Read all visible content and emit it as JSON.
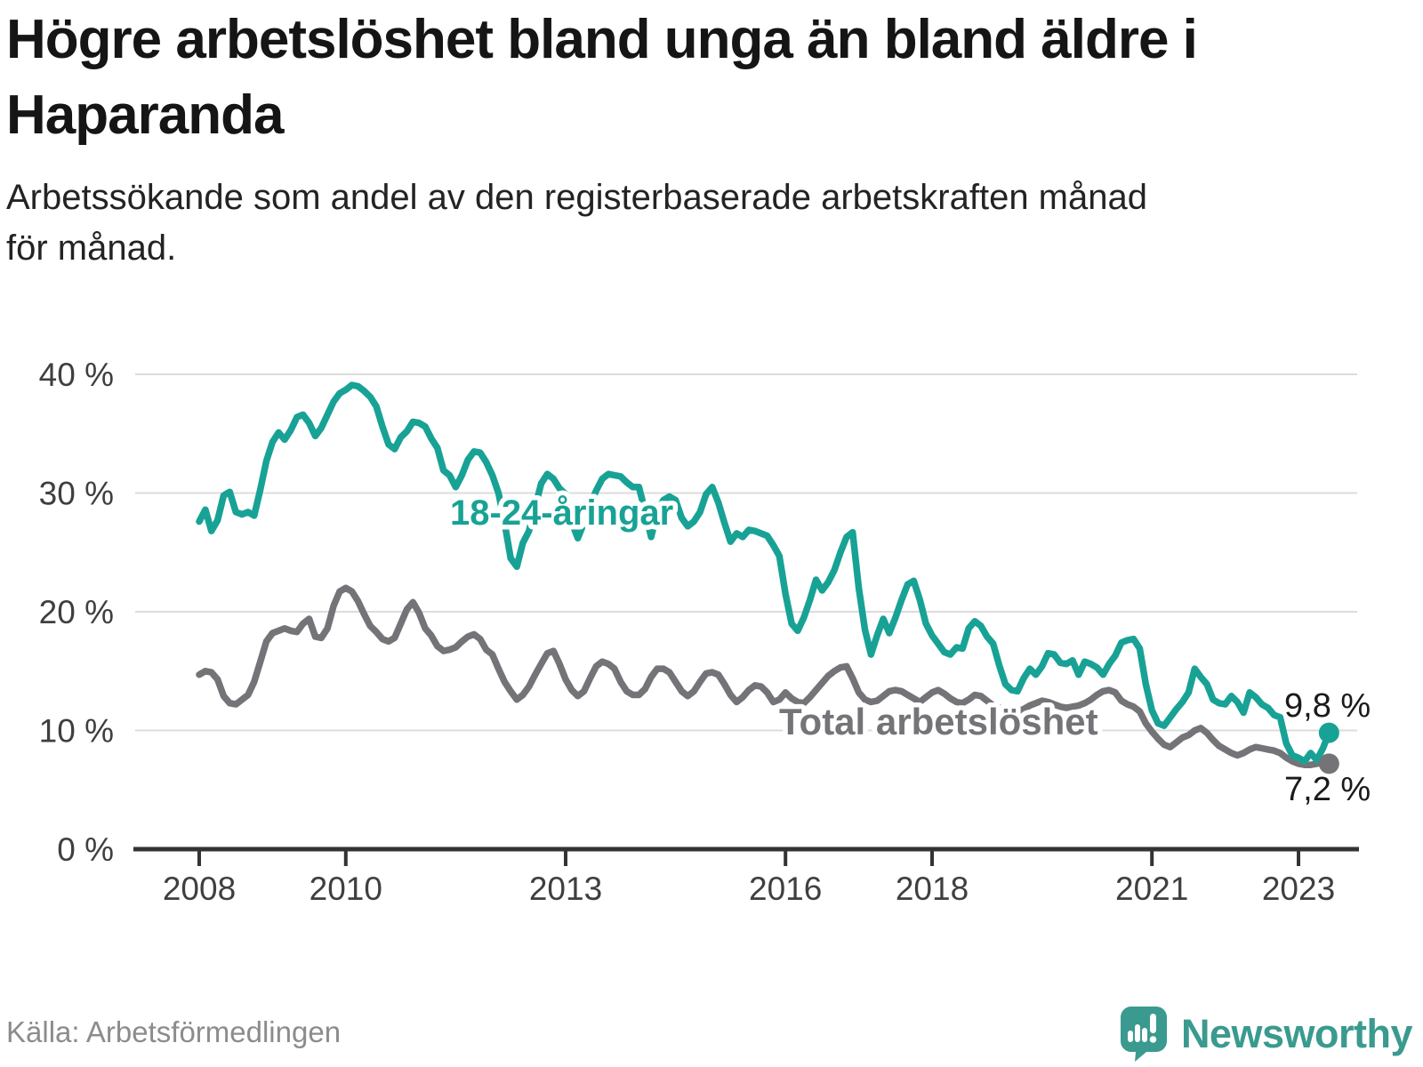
{
  "header": {
    "title_lines": [
      "Högre arbetslöshet bland unga än bland äldre i",
      "Haparanda"
    ],
    "subtitle_lines": [
      "Arbetssökande som andel av den registerbaserade arbetskraften månad",
      "för månad."
    ]
  },
  "footer": {
    "source": "Källa: Arbetsförmedlingen",
    "brand": "Newsworthy"
  },
  "colors": {
    "youth": "#18a295",
    "total": "#747478",
    "grid": "#dcdcdc",
    "axis": "#333333",
    "tick_label": "#3f3f3f",
    "end_label": "#1a1a1a",
    "title": "#151515",
    "source": "#8c8c8c",
    "brand": "#3a9a8f"
  },
  "chart_data": {
    "type": "line",
    "title": "Högre arbetslöshet bland unga än bland äldre i Haparanda",
    "subtitle": "Arbetssökande som andel av den registerbaserade arbetskraften månad för månad.",
    "unit": "%",
    "grid": "horizontal",
    "legend_position": "inline-labels",
    "x": {
      "start_year": 2008,
      "frequency": "monthly",
      "months": 186,
      "ticks": [
        {
          "year": 2008,
          "label": "2008"
        },
        {
          "year": 2010,
          "label": "2010"
        },
        {
          "year": 2013,
          "label": "2013"
        },
        {
          "year": 2016,
          "label": "2016"
        },
        {
          "year": 2018,
          "label": "2018"
        },
        {
          "year": 2021,
          "label": "2021"
        },
        {
          "year": 2023,
          "label": "2023"
        }
      ]
    },
    "y": {
      "min": 0,
      "max": 40,
      "ticks": [
        {
          "value": 0,
          "label": "0 %"
        },
        {
          "value": 10,
          "label": "10 %"
        },
        {
          "value": 20,
          "label": "20 %"
        },
        {
          "value": 30,
          "label": "30 %"
        },
        {
          "value": 40,
          "label": "40 %"
        }
      ]
    },
    "series": [
      {
        "id": "youth",
        "name": "18-24-åringar",
        "inline_label": "18-24-åringar",
        "end_label": "9,8 %",
        "end_value": 9.8,
        "color": "#18a295",
        "values": [
          27.6,
          28.6,
          26.8,
          27.7,
          29.8,
          30.1,
          28.4,
          28.2,
          28.4,
          28.1,
          30.3,
          32.7,
          34.3,
          35.1,
          34.5,
          35.3,
          36.4,
          36.6,
          35.9,
          34.8,
          35.5,
          36.6,
          37.7,
          38.4,
          38.7,
          39.1,
          39.0,
          38.6,
          38.1,
          37.3,
          35.6,
          34.1,
          33.7,
          34.7,
          35.2,
          36.0,
          35.9,
          35.6,
          34.6,
          33.8,
          31.9,
          31.5,
          30.5,
          31.5,
          32.8,
          33.5,
          33.4,
          32.6,
          31.5,
          30.0,
          27.5,
          24.5,
          23.8,
          25.8,
          26.8,
          28.8,
          30.8,
          31.6,
          31.2,
          30.4,
          29.9,
          27.5,
          26.2,
          27.5,
          29.0,
          30.2,
          31.2,
          31.6,
          31.5,
          31.4,
          30.9,
          30.5,
          30.5,
          28.5,
          26.3,
          28.4,
          29.4,
          29.7,
          29.4,
          27.9,
          27.2,
          27.6,
          28.4,
          29.9,
          30.5,
          29.2,
          27.5,
          25.9,
          26.6,
          26.3,
          26.9,
          26.8,
          26.6,
          26.4,
          25.6,
          24.7,
          21.5,
          19.0,
          18.4,
          19.5,
          21.0,
          22.7,
          21.8,
          22.5,
          23.5,
          25.0,
          26.3,
          26.7,
          22.0,
          18.5,
          16.4,
          18.0,
          19.4,
          18.2,
          19.5,
          21.0,
          22.3,
          22.6,
          21.0,
          19.0,
          18.0,
          17.3,
          16.6,
          16.4,
          17.0,
          16.9,
          18.6,
          19.2,
          18.8,
          17.9,
          17.3,
          15.5,
          13.9,
          13.4,
          13.3,
          14.4,
          15.2,
          14.7,
          15.4,
          16.5,
          16.4,
          15.7,
          15.6,
          15.9,
          14.7,
          15.8,
          15.6,
          15.3,
          14.7,
          15.6,
          16.3,
          17.4,
          17.6,
          17.7,
          16.9,
          13.9,
          11.7,
          10.6,
          10.4,
          11.1,
          11.8,
          12.4,
          13.2,
          15.2,
          14.5,
          13.9,
          12.6,
          12.3,
          12.2,
          12.9,
          12.4,
          11.5,
          13.2,
          12.8,
          12.2,
          11.9,
          11.3,
          11.1,
          8.9,
          7.9,
          7.7,
          7.4,
          8.1,
          7.5,
          8.5,
          9.8
        ]
      },
      {
        "id": "total",
        "name": "Total arbetslöshet",
        "inline_label": "Total arbetslöshet",
        "end_label": "7,2 %",
        "end_value": 7.2,
        "color": "#747478",
        "values": [
          14.7,
          15.0,
          14.9,
          14.3,
          12.9,
          12.3,
          12.2,
          12.6,
          13.0,
          14.1,
          15.8,
          17.5,
          18.2,
          18.4,
          18.6,
          18.4,
          18.3,
          19.0,
          19.4,
          17.9,
          17.8,
          18.6,
          20.5,
          21.7,
          22.0,
          21.7,
          20.9,
          19.8,
          18.8,
          18.3,
          17.7,
          17.5,
          17.8,
          19.0,
          20.2,
          20.8,
          19.9,
          18.6,
          18.0,
          17.1,
          16.7,
          16.8,
          17.0,
          17.5,
          17.9,
          18.1,
          17.7,
          16.8,
          16.4,
          15.2,
          14.1,
          13.3,
          12.6,
          13.0,
          13.7,
          14.7,
          15.6,
          16.5,
          16.7,
          15.6,
          14.3,
          13.4,
          12.9,
          13.3,
          14.4,
          15.4,
          15.8,
          15.6,
          15.2,
          14.1,
          13.3,
          13.0,
          13.0,
          13.5,
          14.5,
          15.2,
          15.2,
          14.9,
          14.1,
          13.3,
          12.9,
          13.3,
          14.1,
          14.8,
          14.9,
          14.7,
          13.9,
          13.0,
          12.4,
          12.8,
          13.4,
          13.8,
          13.7,
          13.2,
          12.4,
          12.6,
          13.2,
          12.7,
          12.4,
          12.3,
          12.8,
          13.4,
          14.0,
          14.6,
          15.0,
          15.3,
          15.4,
          14.4,
          13.2,
          12.6,
          12.4,
          12.5,
          12.9,
          13.3,
          13.4,
          13.3,
          13.0,
          12.7,
          12.4,
          12.8,
          13.2,
          13.4,
          13.1,
          12.7,
          12.4,
          12.3,
          12.6,
          13.0,
          12.9,
          12.5,
          12.1,
          11.9,
          11.9,
          11.7,
          11.6,
          11.8,
          12.1,
          12.3,
          12.5,
          12.4,
          12.2,
          12.0,
          11.9,
          12.0,
          12.1,
          12.3,
          12.6,
          13.0,
          13.3,
          13.4,
          13.2,
          12.5,
          12.2,
          12.0,
          11.6,
          10.6,
          9.9,
          9.3,
          8.8,
          8.6,
          9.0,
          9.4,
          9.6,
          10.0,
          10.2,
          9.8,
          9.2,
          8.7,
          8.4,
          8.1,
          7.9,
          8.1,
          8.4,
          8.6,
          8.5,
          8.4,
          8.3,
          8.1,
          7.7,
          7.4,
          7.2,
          7.1,
          7.1,
          7.2,
          7.3,
          7.2
        ]
      }
    ]
  }
}
